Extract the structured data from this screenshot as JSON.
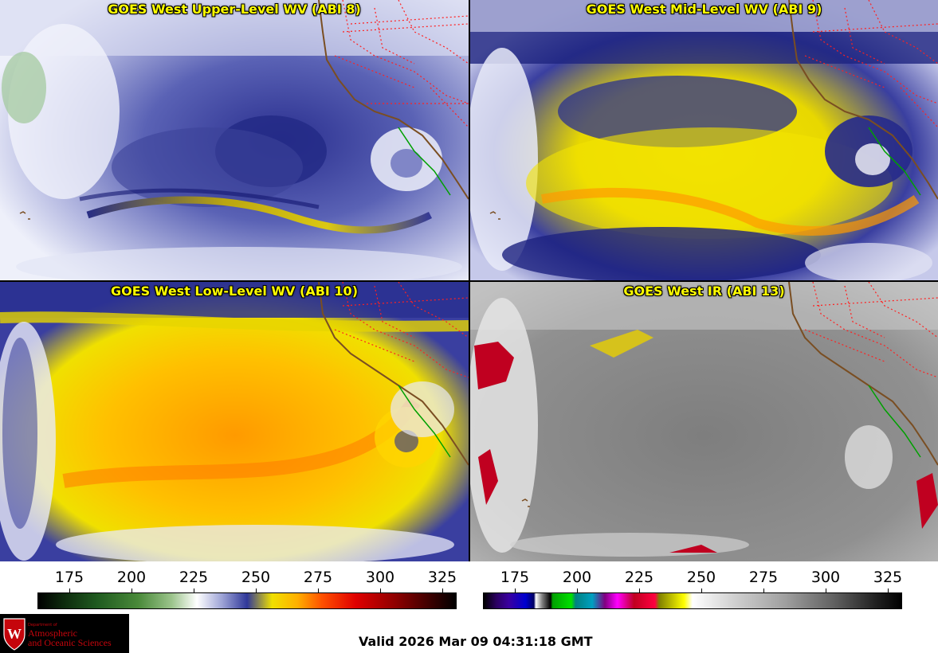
{
  "panels": [
    {
      "title": "GOES West Upper-Level WV (ABI 8)"
    },
    {
      "title": "GOES West Mid-Level WV (ABI 9)"
    },
    {
      "title": "GOES West Low-Level WV (ABI 10)"
    },
    {
      "title": "GOES West IR (ABI 13)"
    }
  ],
  "colorbar_wv": {
    "ticks": [
      "175",
      "200",
      "225",
      "250",
      "275",
      "300",
      "325"
    ]
  },
  "colorbar_ir": {
    "ticks": [
      "175",
      "200",
      "225",
      "250",
      "275",
      "300",
      "325"
    ]
  },
  "footer": {
    "valid": "Valid 2026 Mar 09 04:31:18 GMT"
  },
  "logo": {
    "dept": "Department of",
    "line1": "Atmospheric",
    "line2": "and Oceanic Sciences"
  },
  "colors": {
    "title_yellow": "#ffff00",
    "border_red": "#ff2020",
    "coast_brown": "#8b5a2b",
    "mexico_green": "#00a000"
  }
}
